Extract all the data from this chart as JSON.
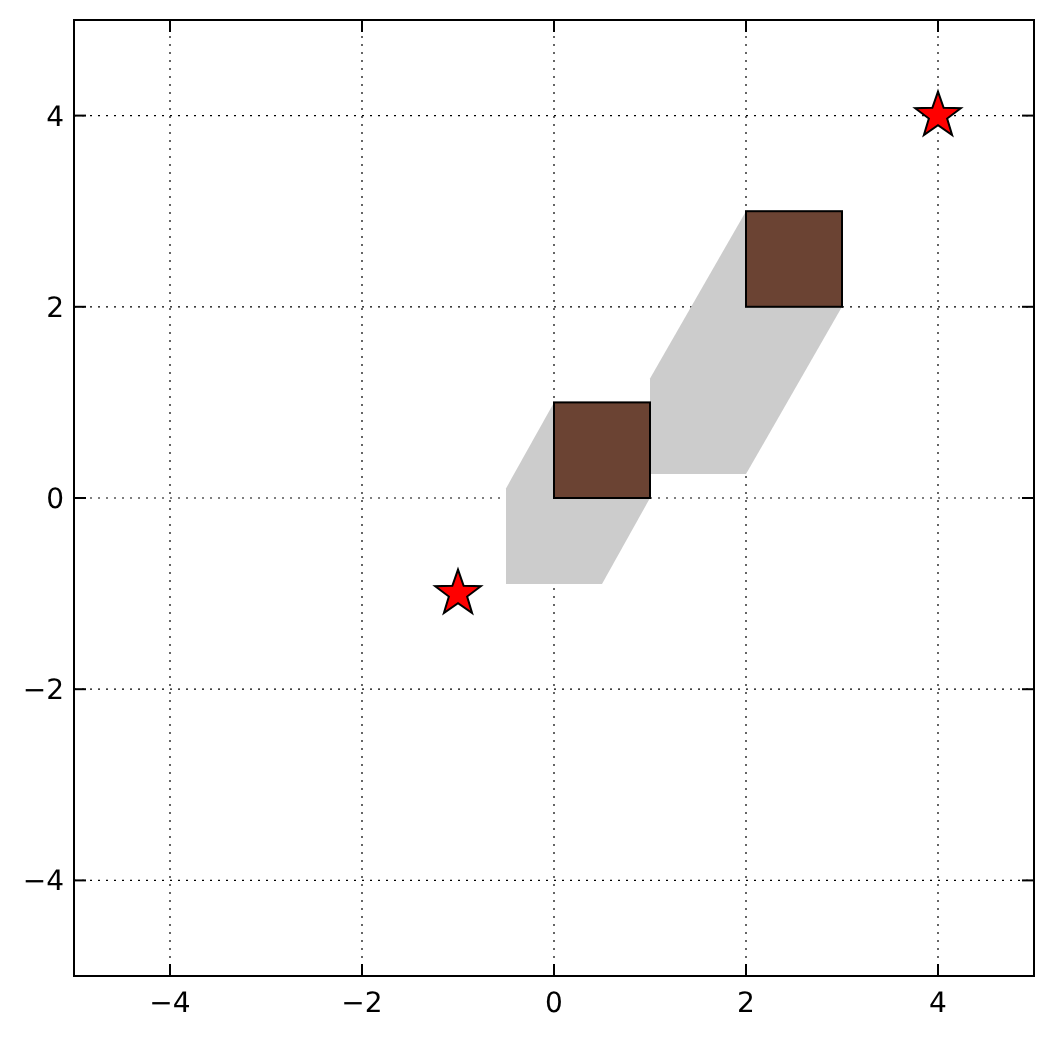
{
  "chart_data": {
    "type": "scatter",
    "xlim": [
      -5,
      5
    ],
    "ylim": [
      -5,
      5
    ],
    "xticks": [
      -4,
      -2,
      0,
      2,
      4
    ],
    "yticks": [
      -4,
      -2,
      0,
      2,
      4
    ],
    "grid": true,
    "series": [
      {
        "type": "bar",
        "x": [
          0.5,
          2.5
        ],
        "base": [
          0,
          2
        ],
        "values": [
          1,
          1
        ],
        "color": "#6b4333"
      },
      {
        "x": [
          -1,
          4
        ],
        "values": [
          -1,
          4
        ],
        "color": "#ff0000",
        "marker": "star"
      }
    ]
  }
}
